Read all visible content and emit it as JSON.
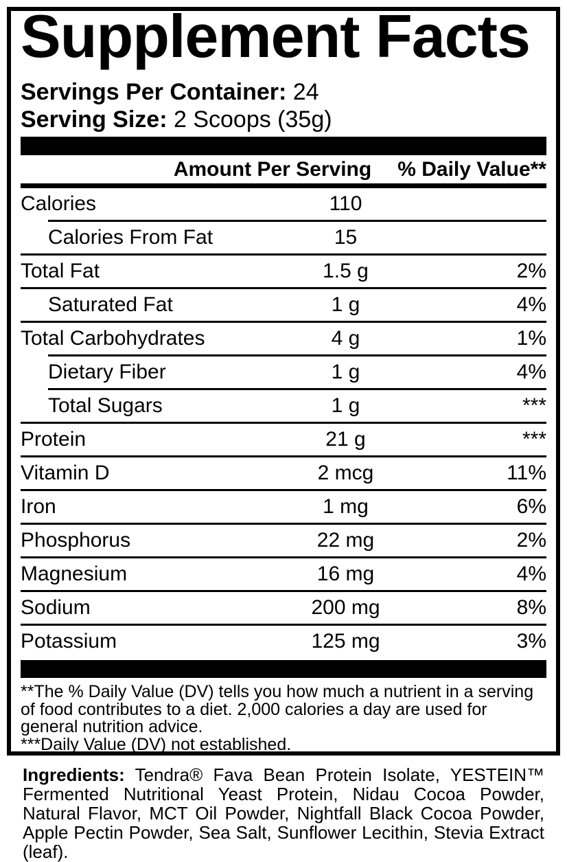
{
  "panel": {
    "title": "Supplement Facts",
    "servings_per_container_label": "Servings Per Container:",
    "servings_per_container_value": "24",
    "serving_size_label": "Serving Size:",
    "serving_size_value": "2 Scoops (35g)",
    "columns": {
      "amount_header": "Amount Per Serving",
      "daily_value_header": "% Daily Value**"
    },
    "rows": [
      {
        "label": "Calories",
        "amount": "110",
        "dv": "",
        "indent": false,
        "sep": "indented"
      },
      {
        "label": "Calories From Fat",
        "amount": "15",
        "dv": "",
        "indent": true,
        "sep": "full"
      },
      {
        "label": "Total Fat",
        "amount": "1.5 g",
        "dv": "2%",
        "indent": false,
        "sep": "full"
      },
      {
        "label": "Saturated Fat",
        "amount": "1 g",
        "dv": "4%",
        "indent": true,
        "sep": "full"
      },
      {
        "label": "Total Carbohydrates",
        "amount": "4 g",
        "dv": "1%",
        "indent": false,
        "sep": "indented"
      },
      {
        "label": "Dietary Fiber",
        "amount": "1 g",
        "dv": "4%",
        "indent": true,
        "sep": "indented"
      },
      {
        "label": "Total Sugars",
        "amount": "1 g",
        "dv": "***",
        "indent": true,
        "sep": "full"
      },
      {
        "label": "Protein",
        "amount": "21 g",
        "dv": "***",
        "indent": false,
        "sep": "full"
      },
      {
        "label": "Vitamin D",
        "amount": "2 mcg",
        "dv": "11%",
        "indent": false,
        "sep": "full"
      },
      {
        "label": "Iron",
        "amount": "1 mg",
        "dv": "6%",
        "indent": false,
        "sep": "full"
      },
      {
        "label": "Phosphorus",
        "amount": "22 mg",
        "dv": "2%",
        "indent": false,
        "sep": "full"
      },
      {
        "label": "Magnesium",
        "amount": "16 mg",
        "dv": "4%",
        "indent": false,
        "sep": "full"
      },
      {
        "label": "Sodium",
        "amount": "200 mg",
        "dv": "8%",
        "indent": false,
        "sep": "full"
      },
      {
        "label": "Potassium",
        "amount": "125 mg",
        "dv": "3%",
        "indent": false,
        "sep": "none"
      }
    ],
    "footnotes": [
      "**The % Daily Value (DV) tells you how much a nutrient in a serving of food contributes to a diet. 2,000 calories a day are used for general nutrition advice.",
      "***Daily Value (DV) not established."
    ]
  },
  "ingredients": {
    "label": "Ingredients:",
    "text": "Tendra® Fava Bean Protein Isolate, YESTEIN™ Fermented Nutritional Yeast Protein, Nidau Cocoa Powder, Natural Flavor, MCT Oil Powder, Nightfall Black Cocoa Powder, Apple Pectin Powder, Sea Salt, Sunflower Lecithin, Stevia Extract (leaf)."
  },
  "colors": {
    "text": "#000000",
    "background": "#ffffff"
  }
}
